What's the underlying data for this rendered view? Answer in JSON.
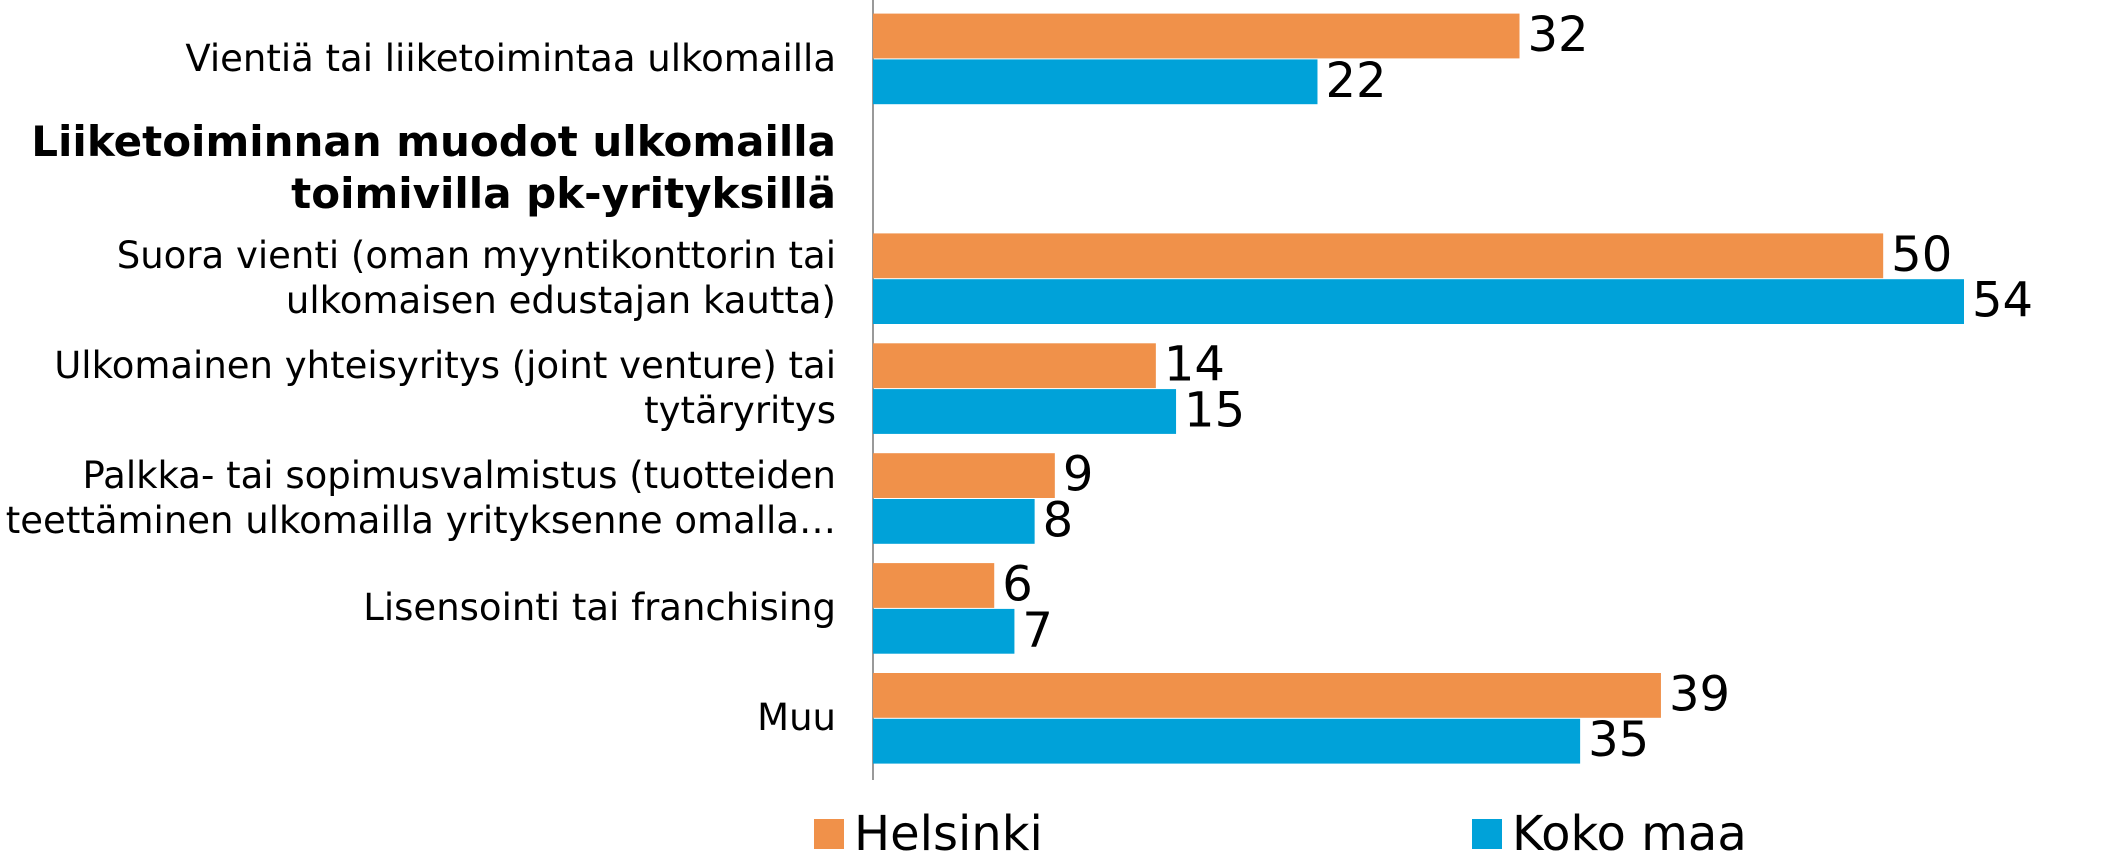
{
  "chart_data": {
    "type": "hbar",
    "categories": [
      "Vientiä tai liiketoimintaa ulkomailla",
      "Liiketoiminnan muodot ulkomailla toimivilla pk-yrityksillä",
      "Suora vienti (oman myyntikonttorin tai ulkomaisen edustajan kautta)",
      "Ulkomainen yhteisyritys (joint venture) tai tytäryritys",
      "Palkka- tai sopimusvalmistus (tuotteiden teettäminen ulkomailla yrityksenne omalla…",
      "Lisensointi tai franchising",
      "Muu"
    ],
    "series": [
      {
        "name": "Helsinki",
        "color": "#f0914a",
        "values": [
          32,
          null,
          50,
          14,
          9,
          6,
          39
        ]
      },
      {
        "name": "Koko maa",
        "color": "#00a2d9",
        "values": [
          22,
          null,
          54,
          15,
          8,
          7,
          35
        ]
      }
    ]
  }
}
